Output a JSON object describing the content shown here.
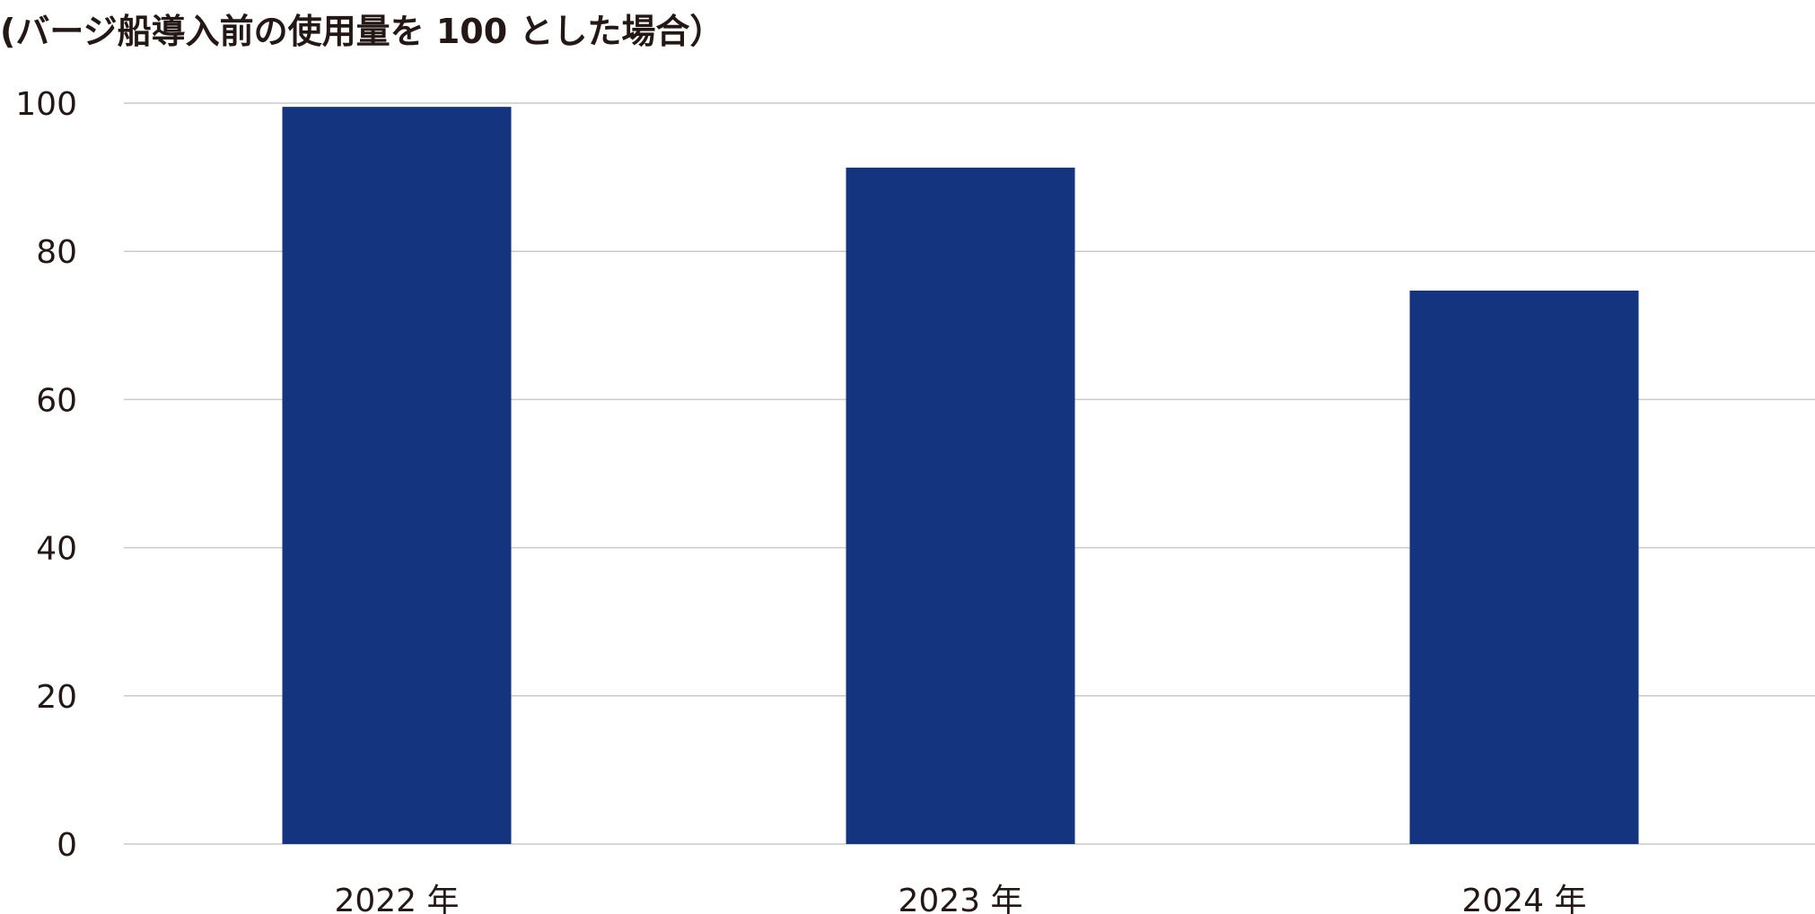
{
  "chart_data": {
    "type": "bar",
    "title": "(バージ船導入前の使用量を 100 とした場合）",
    "categories": [
      "2022 年",
      "2023 年",
      "2024 年"
    ],
    "values": [
      99.5,
      91.3,
      74.7
    ],
    "ylim": [
      0,
      100
    ],
    "yticks": [
      0,
      20,
      40,
      60,
      80,
      100
    ],
    "grid": true,
    "bar_color": "#14347f",
    "grid_color": "#c9cacb",
    "text_color": "#231815"
  }
}
